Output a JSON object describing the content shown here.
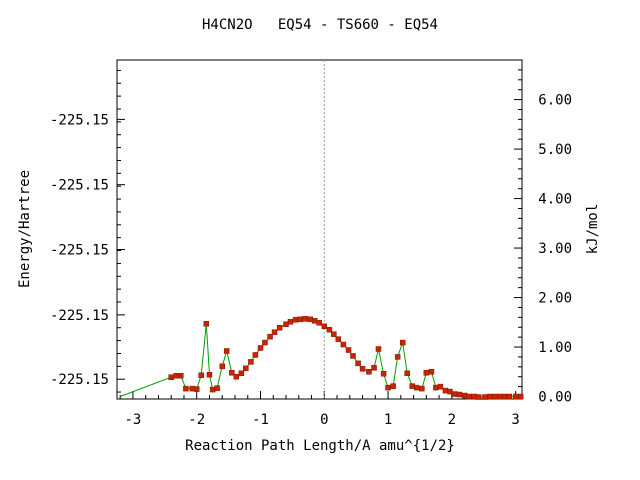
{
  "title": "H4CN2O   EQ54 - TS660 - EQ54",
  "chart_data": {
    "type": "line",
    "title": "H4CN2O   EQ54 - TS660 - EQ54",
    "xlabel": "Reaction Path Length/A amu^{1/2}",
    "ylabel": "Energy/Hartree",
    "y2label": "kJ/mol",
    "xlim": [
      -3.25,
      3.1
    ],
    "ylim_kj": [
      -0.05,
      6.8
    ],
    "x_ticks": [
      -3,
      -2,
      -1,
      0,
      1,
      2,
      3
    ],
    "x_tick_labels": [
      "-3",
      "-2",
      "-1",
      "0",
      "1",
      "2",
      "3"
    ],
    "y_left_ticks_kj": [
      0.35,
      1.65,
      2.97,
      4.28,
      5.6
    ],
    "y_left_tick_labels": [
      "-225.15",
      "-225.15",
      "-225.15",
      "-225.15",
      "-225.15"
    ],
    "y_right_ticks": [
      0,
      1,
      2,
      3,
      4,
      5,
      6
    ],
    "y_right_tick_labels": [
      "0.00",
      "1.00",
      "2.00",
      "3.00",
      "4.00",
      "5.00",
      "6.00"
    ],
    "ts_marker_x": 0.0,
    "grid": false,
    "series": [
      {
        "color": "#00a000",
        "marker_color": "#cc2200",
        "x": [
          -3.2,
          -2.4,
          -2.32,
          -2.25,
          -2.17,
          -2.07,
          -2.0,
          -1.93,
          -1.85,
          -1.8,
          -1.75,
          -1.68,
          -1.6,
          -1.53,
          -1.45,
          -1.38,
          -1.3,
          -1.23,
          -1.15,
          -1.08,
          -1.0,
          -0.93,
          -0.85,
          -0.78,
          -0.7,
          -0.6,
          -0.53,
          -0.45,
          -0.38,
          -0.3,
          -0.22,
          -0.15,
          -0.08,
          0.0,
          0.08,
          0.15,
          0.22,
          0.3,
          0.38,
          0.45,
          0.53,
          0.6,
          0.7,
          0.78,
          0.85,
          0.93,
          1.0,
          1.08,
          1.15,
          1.23,
          1.3,
          1.38,
          1.45,
          1.53,
          1.6,
          1.68,
          1.75,
          1.82,
          1.9,
          1.97,
          2.05,
          2.12,
          2.2,
          2.27,
          2.35,
          2.42,
          2.52,
          2.6,
          2.68,
          2.75,
          2.83,
          2.9,
          3.0,
          3.08
        ],
        "y": [
          0.0,
          0.39,
          0.42,
          0.42,
          0.16,
          0.16,
          0.15,
          0.43,
          1.47,
          0.44,
          0.14,
          0.17,
          0.61,
          0.92,
          0.48,
          0.4,
          0.47,
          0.57,
          0.7,
          0.84,
          0.98,
          1.09,
          1.21,
          1.3,
          1.39,
          1.46,
          1.51,
          1.55,
          1.56,
          1.57,
          1.56,
          1.53,
          1.49,
          1.42,
          1.35,
          1.26,
          1.16,
          1.05,
          0.94,
          0.82,
          0.67,
          0.56,
          0.5,
          0.58,
          0.96,
          0.46,
          0.18,
          0.21,
          0.8,
          1.09,
          0.47,
          0.21,
          0.18,
          0.16,
          0.48,
          0.5,
          0.18,
          0.2,
          0.12,
          0.1,
          0.05,
          0.04,
          0.02,
          0.0,
          0.0,
          -0.01,
          -0.01,
          0.0,
          0.0,
          0.0,
          0.0,
          0.0,
          0.0,
          0.0
        ]
      }
    ]
  }
}
